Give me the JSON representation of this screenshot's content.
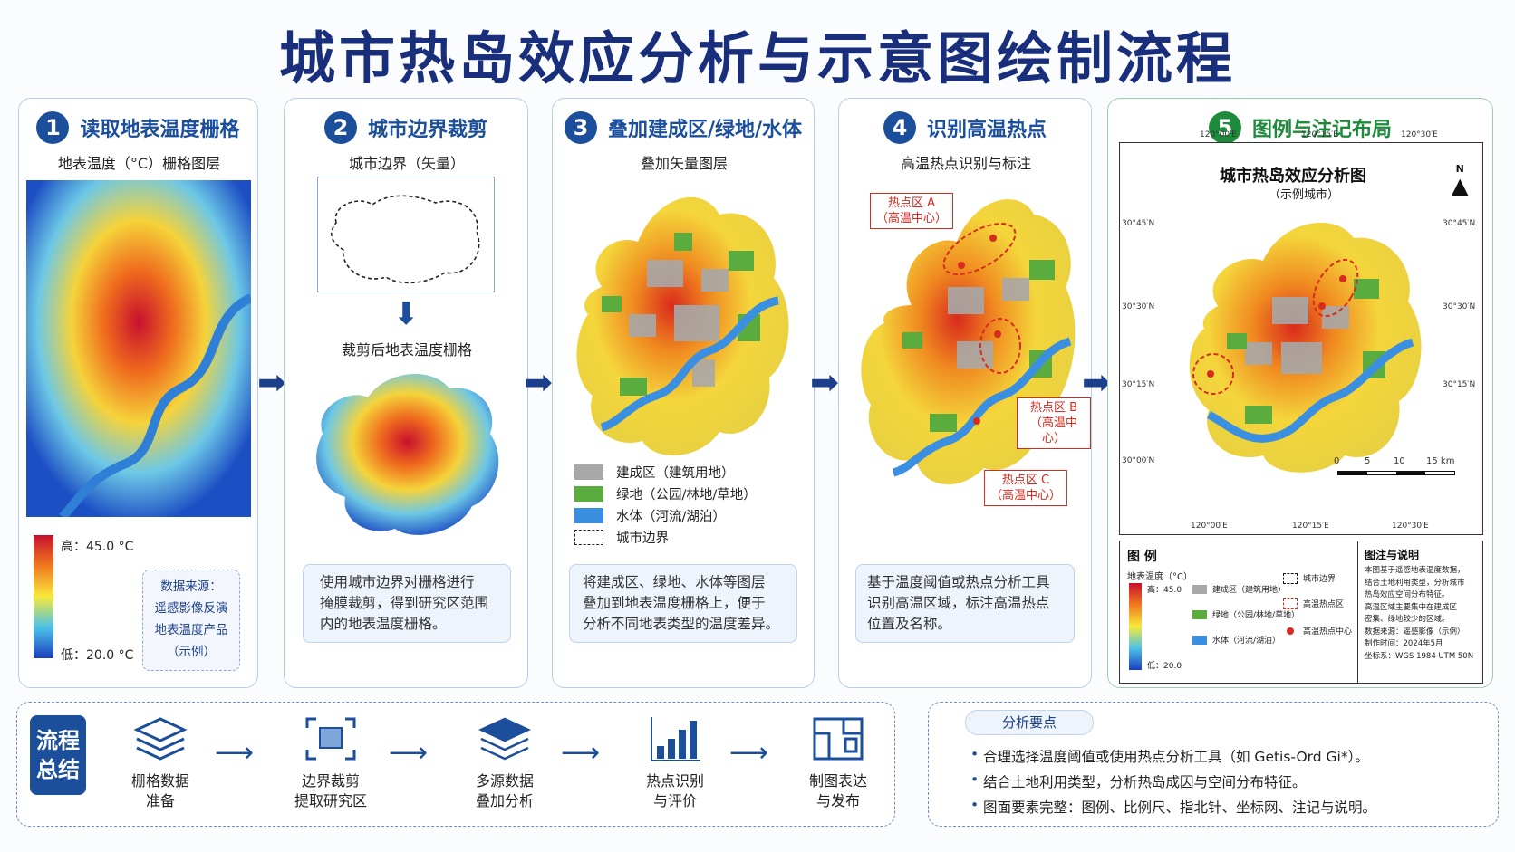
{
  "title": "城市热岛效应分析与示意图绘制流程",
  "steps": [
    {
      "num": "1",
      "title": "读取地表温度栅格",
      "subtitle": "地表温度（°C）栅格图层",
      "legend_high": "高：45.0 °C",
      "legend_low": "低：20.0 °C",
      "source": [
        "数据来源：",
        "遥感影像反演",
        "地表温度产品",
        "（示例）"
      ]
    },
    {
      "num": "2",
      "title": "城市边界裁剪",
      "subtitle": "城市边界（矢量）",
      "subtitle2": "裁剪后地表温度栅格",
      "desc": [
        "使用城市边界对栅格进行",
        "掩膜裁剪，得到研究区范围",
        "内的地表温度栅格。"
      ]
    },
    {
      "num": "3",
      "title": "叠加建成区/绿地/水体",
      "subtitle": "叠加矢量图层",
      "legend": [
        "建成区（建筑用地）",
        "绿地（公园/林地/草地）",
        "水体（河流/湖泊）",
        "城市边界"
      ],
      "desc": [
        "将建成区、绿地、水体等图层",
        "叠加到地表温度栅格上，便于",
        "分析不同地表类型的温度差异。"
      ]
    },
    {
      "num": "4",
      "title": "识别高温热点",
      "subtitle": "高温热点识别与标注",
      "hotspots": [
        [
          "热点区 A",
          "（高温中心）"
        ],
        [
          "热点区 B",
          "（高温中心）"
        ],
        [
          "热点区 C",
          "（高温中心）"
        ]
      ],
      "desc": [
        "基于温度阈值或热点分析工具",
        "识别高温区域，标注高温热点",
        "位置及名称。"
      ]
    },
    {
      "num": "5",
      "title": "图例与注记布局"
    }
  ],
  "map5": {
    "title": "城市热岛效应分析图",
    "subtitle": "（示例城市）",
    "north": "N",
    "top_ticks": [
      "120°00′E",
      "120°15′E",
      "120°30′E"
    ],
    "bottom_ticks": [
      "120°00′E",
      "120°15′E",
      "120°30′E"
    ],
    "left_ticks": [
      "30°45′N",
      "30°30′N",
      "30°15′N",
      "30°00′N"
    ],
    "right_ticks": [
      "30°45′N",
      "30°30′N",
      "30°15′N"
    ],
    "scale": [
      "0",
      "5",
      "10",
      "15 km"
    ],
    "legend_title": "图 例",
    "legend_temp": "地表温度（°C）",
    "legend_high": "高：45.0",
    "legend_low": "低：20.0",
    "legend_items": [
      "建成区（建筑用地）",
      "绿地（公园/林地/草地）",
      "水体（河流/湖泊）",
      "城市边界",
      "高温热点区",
      "高温热点中心"
    ],
    "notes_title": "图注与说明",
    "notes": [
      "本图基于遥感地表温度数据，",
      "结合土地利用类型，分析城市",
      "热岛效应空间分布特征。",
      "高温区域主要集中在建成区",
      "密集、绿地较少的区域。",
      "数据来源：遥感影像（示例）",
      "制作时间：2024年5月",
      "坐标系：WGS 1984 UTM 50N"
    ]
  },
  "flow": {
    "badge": [
      "流程",
      "总结"
    ],
    "steps": [
      [
        "栅格数据",
        "准备"
      ],
      [
        "边界裁剪",
        "提取研究区"
      ],
      [
        "多源数据",
        "叠加分析"
      ],
      [
        "热点识别",
        "与评价"
      ],
      [
        "制图表达",
        "与发布"
      ]
    ]
  },
  "key_points": {
    "tag": "分析要点",
    "items": [
      "合理选择温度阈值或使用热点分析工具（如 Getis-Ord Gi*）。",
      "结合土地利用类型，分析热岛成因与空间分布特征。",
      "图面要素完整：图例、比例尺、指北针、坐标网、注记与说明。"
    ]
  },
  "colors": {
    "primary": "#1b4e9b",
    "green": "#1e8a3c",
    "hot": "#d62b1f",
    "water": "#3b8fe0",
    "built": "#a8a8a8",
    "greenland": "#5aac3f"
  }
}
